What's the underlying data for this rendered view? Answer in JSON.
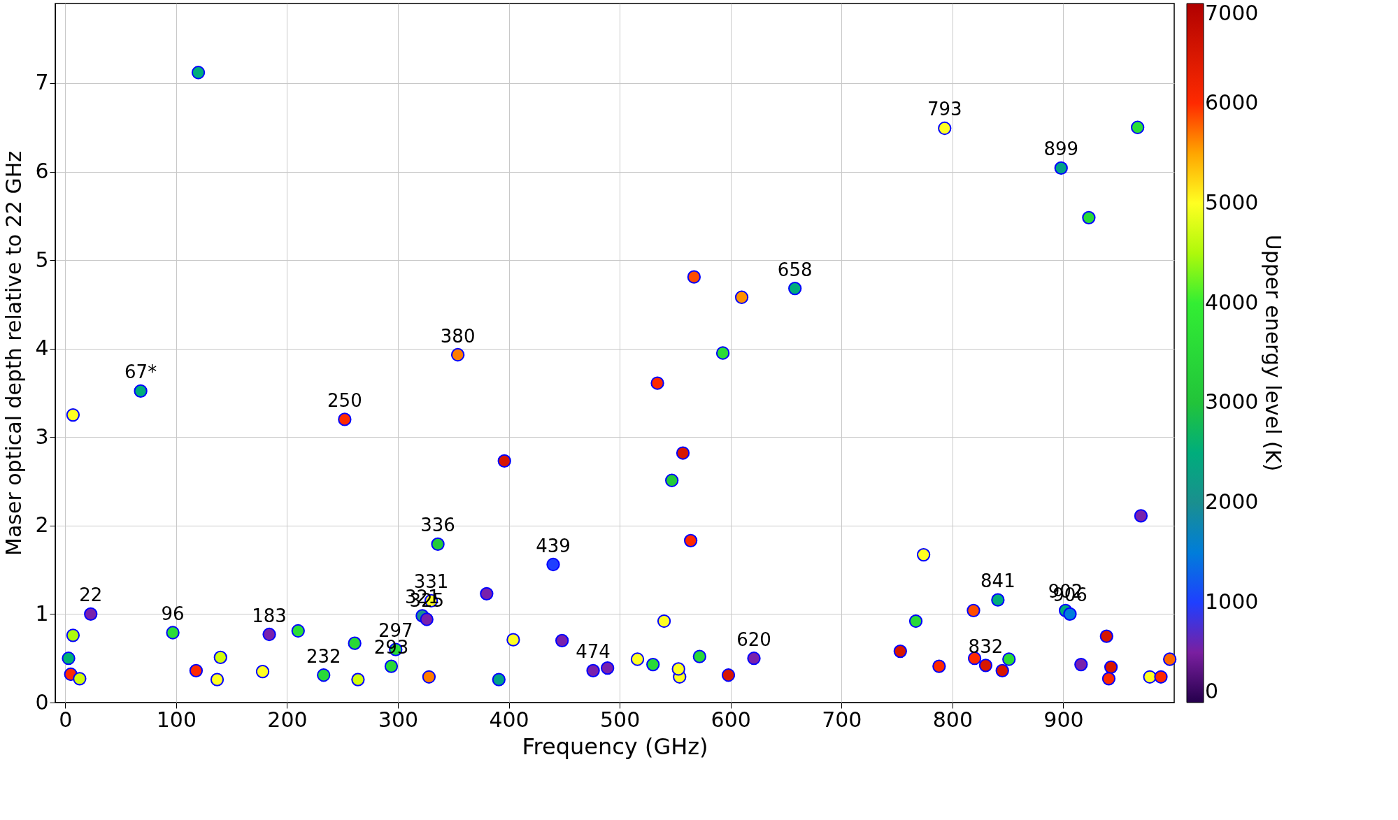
{
  "chart_data": {
    "type": "scatter",
    "xlabel": "Frequency (GHz)",
    "ylabel": "Maser optical depth relative to 22 GHz",
    "clabel": "Upper energy level (K)",
    "xlim": [
      -9,
      1000
    ],
    "ylim": [
      0,
      7.9
    ],
    "xticks": [
      0,
      100,
      200,
      300,
      400,
      500,
      600,
      700,
      800,
      900
    ],
    "yticks": [
      0,
      1,
      2,
      3,
      4,
      5,
      6,
      7
    ],
    "clim": [
      0,
      7000
    ],
    "cticks": [
      0,
      1000,
      2000,
      3000,
      4000,
      5000,
      6000,
      7000
    ],
    "grid": true,
    "marker": "circle",
    "x": [
      7,
      68,
      120,
      252,
      354,
      336,
      396,
      440,
      380,
      330,
      322,
      326,
      534,
      557,
      547,
      564,
      567,
      610,
      593,
      658,
      793,
      898,
      923,
      967,
      970,
      774,
      767,
      819,
      841,
      902,
      906,
      939,
      753,
      788,
      820,
      830,
      845,
      851,
      916,
      943,
      941,
      978,
      988,
      996,
      621,
      598,
      572,
      554,
      553,
      540,
      530,
      516,
      489,
      476,
      448,
      404,
      391,
      328,
      294,
      298,
      261,
      264,
      233,
      210,
      184,
      178,
      140,
      137,
      118,
      97,
      23,
      7,
      3,
      5,
      13
    ],
    "values": [
      3.25,
      3.52,
      7.12,
      3.2,
      3.93,
      1.79,
      2.73,
      1.56,
      1.23,
      1.15,
      0.98,
      0.94,
      3.61,
      2.82,
      2.51,
      1.83,
      4.81,
      4.58,
      3.95,
      4.68,
      6.49,
      6.04,
      5.48,
      6.5,
      2.11,
      1.67,
      0.92,
      1.04,
      1.16,
      1.04,
      1.0,
      0.75,
      0.58,
      0.41,
      0.5,
      0.42,
      0.36,
      0.49,
      0.43,
      0.4,
      0.27,
      0.29,
      0.29,
      0.49,
      0.5,
      0.31,
      0.52,
      0.29,
      0.38,
      0.92,
      0.43,
      0.49,
      0.39,
      0.36,
      0.7,
      0.71,
      0.26,
      0.29,
      0.41,
      0.6,
      0.67,
      0.26,
      0.31,
      0.81,
      0.77,
      0.35,
      0.51,
      0.26,
      0.36,
      0.79,
      1.0,
      0.76,
      0.5,
      0.32,
      0.27
    ],
    "cvalues": [
      5000,
      2500,
      2500,
      6000,
      5700,
      3150,
      6500,
      1000,
      570,
      5000,
      2000,
      570,
      6000,
      6500,
      3150,
      6000,
      5900,
      5600,
      3600,
      2500,
      5000,
      2300,
      3500,
      3600,
      570,
      5000,
      3500,
      5900,
      2500,
      2500,
      1500,
      6500,
      6500,
      6000,
      6000,
      6500,
      6500,
      3500,
      570,
      6500,
      6000,
      5000,
      6000,
      5800,
      570,
      6500,
      3500,
      5000,
      5000,
      5000,
      3500,
      5000,
      570,
      570,
      570,
      5000,
      2300,
      5700,
      3500,
      3500,
      3500,
      4700,
      3500,
      3600,
      570,
      5000,
      4700,
      5000,
      6000,
      3600,
      570,
      4500,
      2600,
      6000,
      4700
    ],
    "annotations": [
      {
        "text": "67*",
        "x": 68,
        "y": 3.52
      },
      {
        "text": "22",
        "x": 23,
        "y": 1.0
      },
      {
        "text": "96",
        "x": 97,
        "y": 0.79
      },
      {
        "text": "183",
        "x": 184,
        "y": 0.77
      },
      {
        "text": "232",
        "x": 233,
        "y": 0.31
      },
      {
        "text": "293",
        "x": 294,
        "y": 0.41
      },
      {
        "text": "297",
        "x": 298,
        "y": 0.6
      },
      {
        "text": "321",
        "x": 322,
        "y": 0.98
      },
      {
        "text": "325",
        "x": 326,
        "y": 0.94
      },
      {
        "text": "331",
        "x": 330,
        "y": 1.15
      },
      {
        "text": "336",
        "x": 336,
        "y": 1.79
      },
      {
        "text": "380",
        "x": 354,
        "y": 3.93
      },
      {
        "text": "250",
        "x": 252,
        "y": 3.2
      },
      {
        "text": "439",
        "x": 440,
        "y": 1.56
      },
      {
        "text": "474",
        "x": 476,
        "y": 0.36
      },
      {
        "text": "620",
        "x": 621,
        "y": 0.5
      },
      {
        "text": "658",
        "x": 658,
        "y": 4.68
      },
      {
        "text": "793",
        "x": 793,
        "y": 6.49
      },
      {
        "text": "899",
        "x": 898,
        "y": 6.04
      },
      {
        "text": "841",
        "x": 841,
        "y": 1.16
      },
      {
        "text": "832",
        "x": 830,
        "y": 0.42
      },
      {
        "text": "902",
        "x": 902,
        "y": 1.04
      },
      {
        "text": "906",
        "x": 906,
        "y": 1.0
      }
    ]
  }
}
